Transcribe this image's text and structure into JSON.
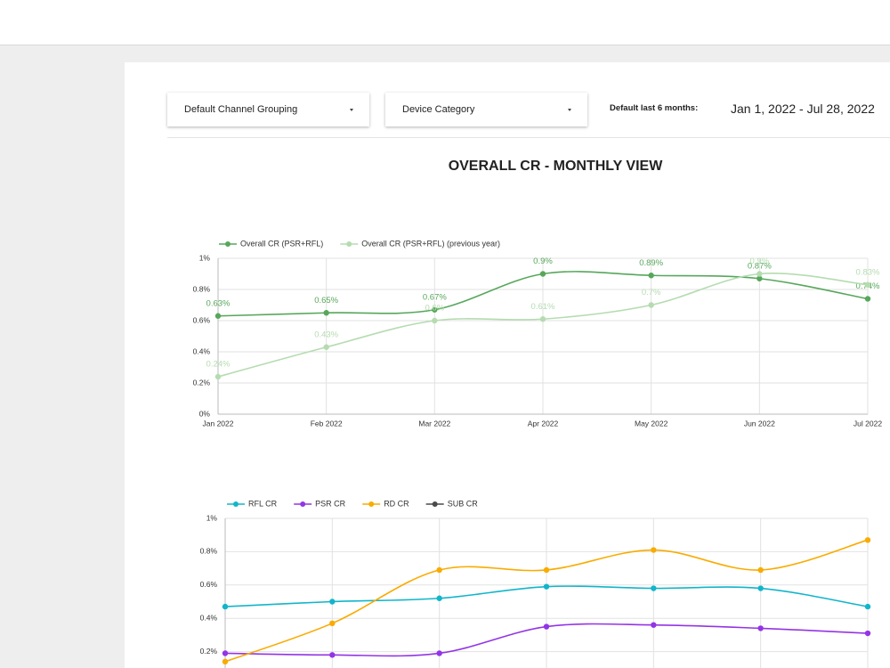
{
  "filters": [
    {
      "label": "Default Channel Grouping"
    },
    {
      "label": "Device Category"
    }
  ],
  "date_range": {
    "label": "Default last 6 months:",
    "value": "Jan 1, 2022 - Jul 28, 2022"
  },
  "title": "OVERALL CR - MONTHLY VIEW",
  "chart_data": [
    {
      "type": "line",
      "categories": [
        "Jan 2022",
        "Feb 2022",
        "Mar 2022",
        "Apr 2022",
        "May 2022",
        "Jun 2022",
        "Jul 2022"
      ],
      "series": [
        {
          "name": "Overall CR (PSR+RFL)",
          "color": "#57a75b",
          "values": [
            0.63,
            0.65,
            0.67,
            0.9,
            0.89,
            0.87,
            0.74
          ],
          "value_labels": [
            "0.63%",
            "0.65%",
            "0.67%",
            "0.9%",
            "0.89%",
            "0.87%",
            "0.74%"
          ]
        },
        {
          "name": "Overall CR (PSR+RFL) (previous year)",
          "color": "#b5dcb0",
          "values": [
            0.24,
            0.43,
            0.6,
            0.61,
            0.7,
            0.9,
            0.83
          ],
          "value_labels": [
            "0.24%",
            "0.43%",
            "0.6%",
            "0.61%",
            "0.7%",
            "0.9%",
            "0.83%"
          ]
        }
      ],
      "ylim": [
        0,
        1
      ],
      "yticks": [
        {
          "value": 0,
          "label": "0%"
        },
        {
          "value": 0.2,
          "label": "0.2%"
        },
        {
          "value": 0.4,
          "label": "0.4%"
        },
        {
          "value": 0.6,
          "label": "0.6%"
        },
        {
          "value": 0.8,
          "label": "0.8%"
        },
        {
          "value": 1,
          "label": "1%"
        }
      ],
      "grid": true,
      "legend": "top-left"
    },
    {
      "type": "line",
      "series": [
        {
          "name": "RFL CR",
          "color": "#12b5cb",
          "values": [
            0.47,
            0.5,
            0.52,
            0.59,
            0.58,
            0.58,
            0.47
          ]
        },
        {
          "name": "PSR CR",
          "color": "#9334e6",
          "values": [
            0.19,
            0.18,
            0.19,
            0.35,
            0.36,
            0.34,
            0.31
          ]
        },
        {
          "name": "RD CR",
          "color": "#f9ab00",
          "values": [
            0.14,
            0.37,
            0.69,
            0.69,
            0.81,
            0.69,
            0.87
          ]
        },
        {
          "name": "SUB CR",
          "color": "#4a4a4a",
          "values": [
            null,
            null,
            null,
            null,
            null,
            null,
            null
          ]
        }
      ],
      "ylim": [
        0,
        1
      ],
      "yticks": [
        {
          "value": 0.2,
          "label": "0.2%"
        },
        {
          "value": 0.4,
          "label": "0.4%"
        },
        {
          "value": 0.6,
          "label": "0.6%"
        },
        {
          "value": 0.8,
          "label": "0.8%"
        },
        {
          "value": 1,
          "label": "1%"
        }
      ],
      "grid": true,
      "legend": "top-left"
    }
  ]
}
